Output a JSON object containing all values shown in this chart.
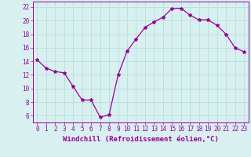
{
  "x": [
    0,
    1,
    2,
    3,
    4,
    5,
    6,
    7,
    8,
    9,
    10,
    11,
    12,
    13,
    14,
    15,
    16,
    17,
    18,
    19,
    20,
    21,
    22,
    23
  ],
  "y": [
    14.2,
    13.0,
    12.5,
    12.3,
    10.3,
    8.3,
    8.3,
    5.8,
    6.1,
    12.0,
    15.5,
    17.3,
    19.0,
    19.8,
    20.5,
    21.8,
    21.8,
    20.8,
    20.1,
    20.1,
    19.3,
    18.0,
    16.0,
    15.4
  ],
  "line_color": "#990099",
  "marker": "*",
  "marker_size": 3,
  "bg_color": "#d8f0f0",
  "grid_color": "#b8dede",
  "xlabel": "Windchill (Refroidissement éolien,°C)",
  "xlim": [
    -0.5,
    23.5
  ],
  "ylim": [
    5.0,
    22.8
  ],
  "yticks": [
    6,
    8,
    10,
    12,
    14,
    16,
    18,
    20,
    22
  ],
  "xticks": [
    0,
    1,
    2,
    3,
    4,
    5,
    6,
    7,
    8,
    9,
    10,
    11,
    12,
    13,
    14,
    15,
    16,
    17,
    18,
    19,
    20,
    21,
    22,
    23
  ],
  "tick_color": "#990099",
  "label_color": "#990099",
  "spine_color": "#990099",
  "tick_fontsize": 5.5,
  "xlabel_fontsize": 6.5
}
